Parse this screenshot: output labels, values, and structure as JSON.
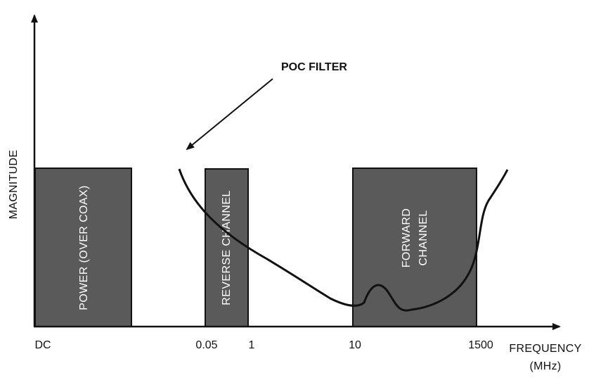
{
  "colors": {
    "band_fill": "#5a5a5a",
    "band_stroke": "#111111",
    "line": "#111111",
    "band_text": "#ffffff"
  },
  "axes": {
    "y_label": "MAGNITUDE",
    "x_label_line1": "FREQUENCY",
    "x_label_line2": "(MHz)",
    "ticks": [
      "DC",
      "0.05",
      "1",
      "10",
      "1500"
    ]
  },
  "bands": [
    {
      "id": "power",
      "lines": [
        "POWER (OVER COAX)"
      ]
    },
    {
      "id": "reverse",
      "lines": [
        "REVERSE CHANNEL"
      ]
    },
    {
      "id": "forward",
      "lines": [
        "FORWARD",
        "CHANNEL"
      ]
    }
  ],
  "callout": {
    "label": "POC FILTER"
  }
}
